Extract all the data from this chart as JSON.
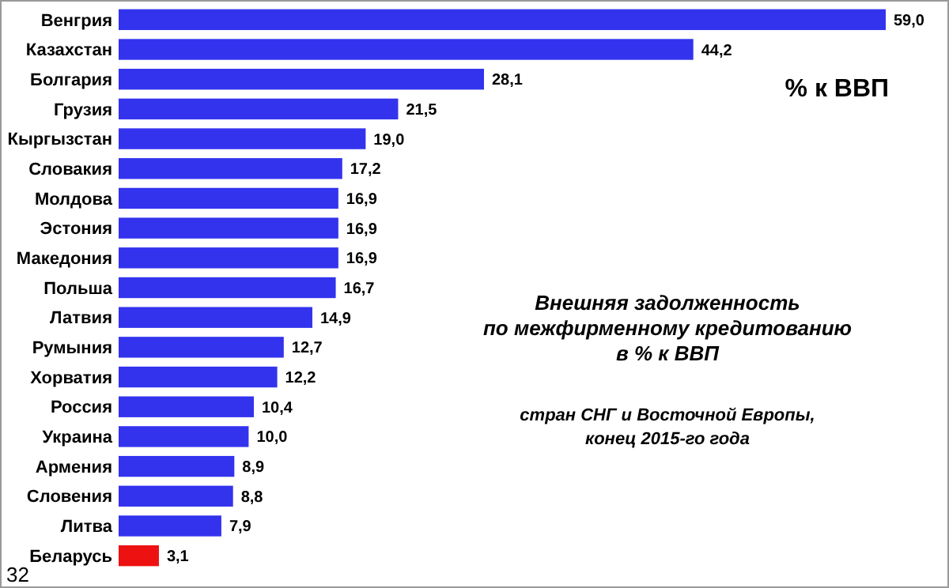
{
  "chart_data": {
    "type": "bar",
    "orientation": "horizontal",
    "title": "Внешняя задолженность\nпо межфирменному кредитованию\nв % к ВВП",
    "subtitle": "стран СНГ и Восточной Европы,\nконец 2015-го года",
    "categories": [
      "Венгрия",
      "Казахстан",
      "Болгария",
      "Грузия",
      "Кыргызстан",
      "Словакия",
      "Молдова",
      "Эстония",
      "Македония",
      "Польша",
      "Латвия",
      "Румыния",
      "Хорватия",
      "Россия",
      "Украина",
      "Армения",
      "Словения",
      "Литва",
      "Беларусь"
    ],
    "values": [
      59.0,
      44.2,
      28.1,
      21.5,
      19.0,
      17.2,
      16.9,
      16.9,
      16.9,
      16.7,
      14.9,
      12.7,
      12.2,
      10.4,
      10.0,
      8.9,
      8.8,
      7.9,
      3.1
    ],
    "value_labels": [
      "59,0",
      "44,2",
      "28,1",
      "21,5",
      "19,0",
      "17,2",
      "16,9",
      "16,9",
      "16,9",
      "16,7",
      "14,9",
      "12,7",
      "12,2",
      "10,4",
      "10,0",
      "8,9",
      "8,8",
      "7,9",
      "3,1"
    ],
    "colors": [
      "#3333ee",
      "#3333ee",
      "#3333ee",
      "#3333ee",
      "#3333ee",
      "#3333ee",
      "#3333ee",
      "#3333ee",
      "#3333ee",
      "#3333ee",
      "#3333ee",
      "#3333ee",
      "#3333ee",
      "#3333ee",
      "#3333ee",
      "#3333ee",
      "#3333ee",
      "#3333ee",
      "#ee1111"
    ],
    "annotations": [
      "% к ВВП",
      "32"
    ]
  }
}
